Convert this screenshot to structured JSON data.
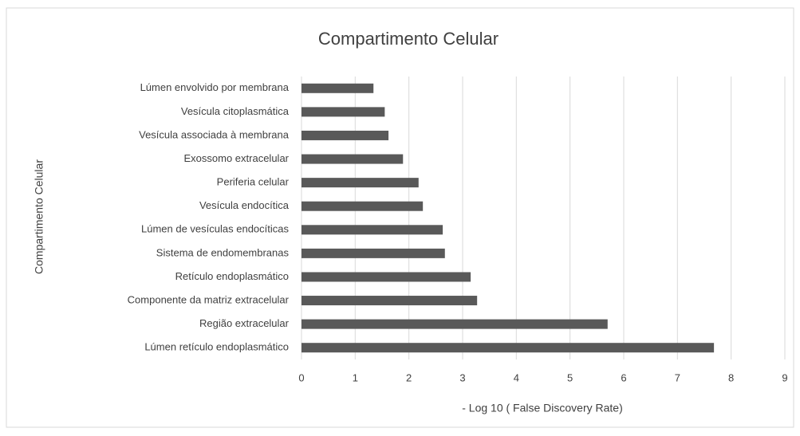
{
  "chart_data": {
    "type": "barh",
    "title": "Compartimento Celular",
    "xlabel": "- Log 10 ( False Discovery Rate)",
    "ylabel": "Compartimento Celular",
    "categories": [
      "Lúmen envolvido por membrana",
      "Vesícula citoplasmática",
      "Vesícula associada à membrana",
      "Exossomo extracelular",
      "Periferia celular",
      "Vesícula endocítica",
      "Lúmen de vesículas endocíticas",
      "Sistema de endomembranas",
      "Retículo endoplasmático",
      "Componente da matriz extracelular",
      "Região extracelular",
      "Lúmen retículo endoplasmático"
    ],
    "values": [
      1.34,
      1.55,
      1.62,
      1.89,
      2.18,
      2.26,
      2.63,
      2.67,
      3.15,
      3.27,
      5.7,
      7.68
    ],
    "color": "#595959",
    "xlim": [
      0,
      9
    ],
    "xticks": [
      0,
      1,
      2,
      3,
      4,
      5,
      6,
      7,
      8,
      9
    ],
    "grid": true
  }
}
